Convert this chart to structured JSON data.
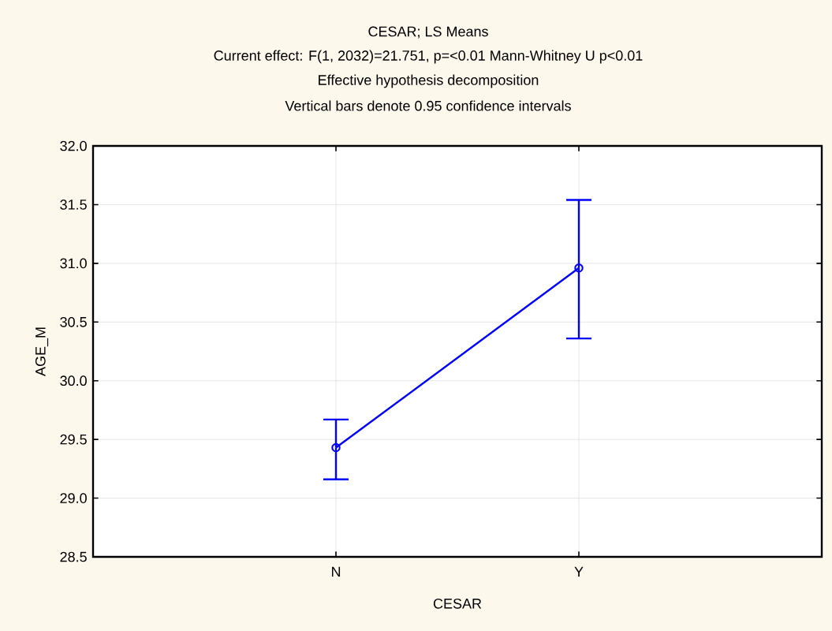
{
  "chart_data": {
    "type": "line",
    "title": "CESAR; LS Means",
    "subtitle": "Current effect: F(1, 2032)=21.751, p=<0.01 Mann-Whitney U p<0.01",
    "annotations": [
      "Effective hypothesis decomposition",
      "Vertical bars denote 0.95 confidence intervals"
    ],
    "xlabel": "CESAR",
    "ylabel": "AGE_M",
    "categories": [
      "N",
      "Y"
    ],
    "values": [
      29.43,
      30.96
    ],
    "errors": [
      [
        29.16,
        29.67
      ],
      [
        30.36,
        31.54
      ]
    ],
    "color": "#0000ff",
    "marker": "circle",
    "line_style": "solid",
    "ylim": [
      28.5,
      32.0
    ],
    "yticks": [
      {
        "value": 28.5,
        "label": "28.5"
      },
      {
        "value": 29.0,
        "label": "29.0"
      },
      {
        "value": 29.5,
        "label": "29.5"
      },
      {
        "value": 30.0,
        "label": "30.0"
      },
      {
        "value": 30.5,
        "label": "30.5"
      },
      {
        "value": 31.0,
        "label": "31.0"
      },
      {
        "value": 31.5,
        "label": "31.5"
      },
      {
        "value": 32.0,
        "label": "32.0"
      }
    ],
    "grid": true
  }
}
